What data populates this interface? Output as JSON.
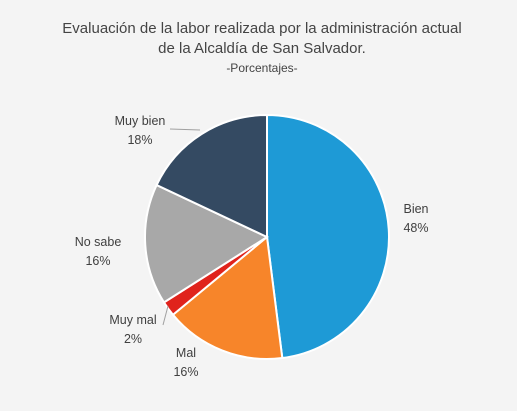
{
  "chart_data": {
    "type": "pie",
    "title_line1": "Evaluación de la labor realizada por la administración actual",
    "title_line2": "de la Alcaldía de San Salvador.",
    "subtitle": "-Porcentajes-",
    "slices": [
      {
        "name": "Bien",
        "value": 48,
        "label": "48%",
        "color": "#1e9ad6"
      },
      {
        "name": "Mal",
        "value": 16,
        "label": "16%",
        "color": "#f7852a"
      },
      {
        "name": "Muy mal",
        "value": 2,
        "label": "2%",
        "color": "#e0231c"
      },
      {
        "name": "No sabe",
        "value": 16,
        "label": "16%",
        "color": "#a8a8a8"
      },
      {
        "name": "Muy bien",
        "value": 18,
        "label": "18%",
        "color": "#344a62"
      }
    ]
  }
}
